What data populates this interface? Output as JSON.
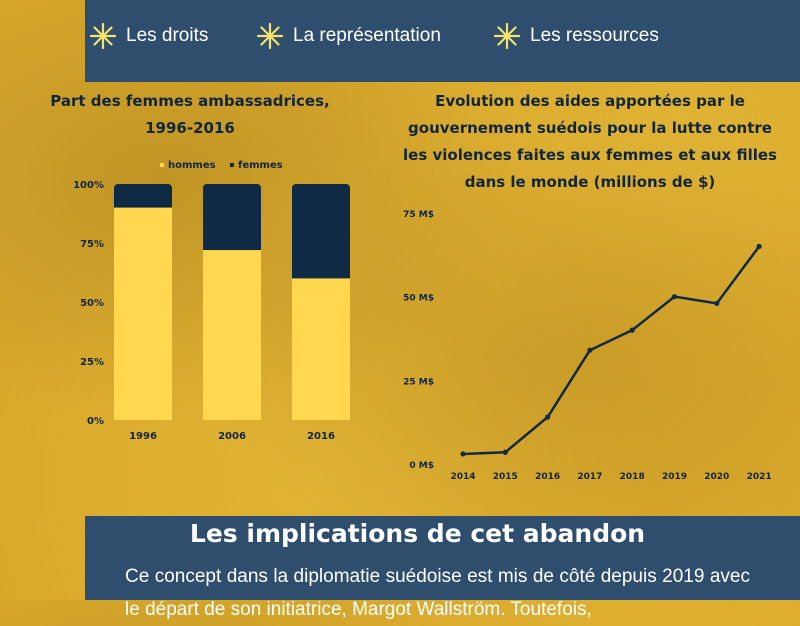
{
  "nav": {
    "items": [
      {
        "label": "Les droits",
        "icon": "sparkle-icon"
      },
      {
        "label": "La représentation",
        "icon": "sparkle-icon"
      },
      {
        "label": "Les ressources",
        "icon": "sparkle-icon"
      }
    ],
    "icon_color": "#f5e36b"
  },
  "colors": {
    "navy": "#0f2a44",
    "yellow": "#ffd84f",
    "band": "#2f4e6e",
    "axis_text": "#10263b"
  },
  "chart_data": [
    {
      "type": "bar",
      "stacked": true,
      "title": "Part des femmes ambassadrices, 1996-2016",
      "categories": [
        "1996",
        "2006",
        "2016"
      ],
      "series": [
        {
          "name": "hommes",
          "values": [
            90,
            72,
            60
          ]
        },
        {
          "name": "femmes",
          "values": [
            10,
            28,
            40
          ]
        }
      ],
      "ylim": [
        0,
        100
      ],
      "yticks": [
        "0%",
        "25%",
        "50%",
        "75%",
        "100%"
      ],
      "ytick_values": [
        0,
        25,
        50,
        75,
        100
      ],
      "legend": "top-center",
      "grid": false
    },
    {
      "type": "line",
      "title": "Evolution des aides apportées par le gouvernement suédois pour la lutte contre les violences faites aux femmes et aux filles dans le monde (millions de $)",
      "x": [
        "2014",
        "2015",
        "2016",
        "2017",
        "2018",
        "2019",
        "2020",
        "2021"
      ],
      "y": [
        3,
        3.5,
        14,
        34,
        40,
        50,
        48,
        65
      ],
      "ylim": [
        0,
        75
      ],
      "yticks": [
        "0 M$",
        "25 M$",
        "50 M$",
        "75 M$"
      ],
      "ytick_values": [
        0,
        25,
        50,
        75
      ],
      "grid": false
    }
  ],
  "section": {
    "title": "Les implications de cet abandon",
    "body": "Ce concept dans la diplomatie suédoise est mis de côté depuis 2019 avec le départ de son initiatrice, Margot Wallström. Toutefois,"
  }
}
